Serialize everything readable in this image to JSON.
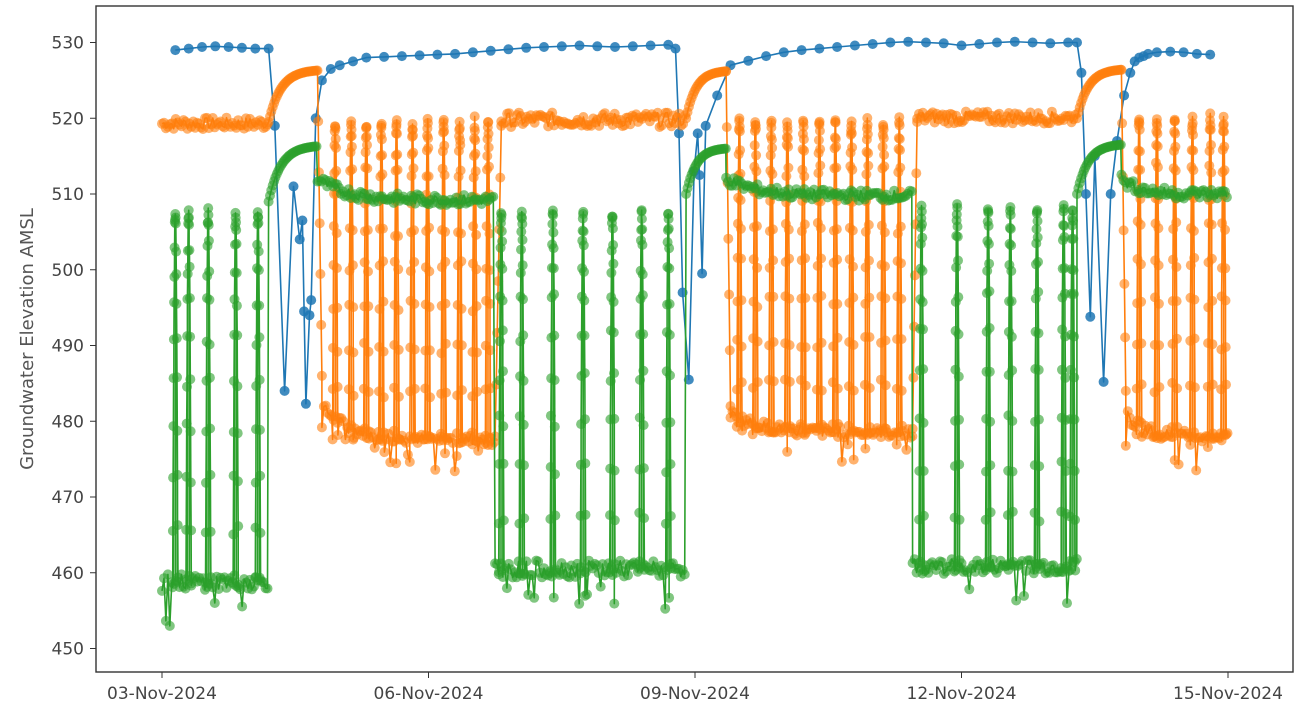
{
  "chart_data": {
    "type": "scatter",
    "mode": "lines+markers",
    "title": "",
    "xlabel": "",
    "ylabel": "Groundwater Elevation AMSL",
    "xlim": [
      0.0,
      12.2
    ],
    "ylim": [
      445,
      535
    ],
    "x_tick_values": [
      0,
      3,
      6,
      9,
      12
    ],
    "x_tick_labels": [
      "03-Nov-2024",
      "06-Nov-2024",
      "09-Nov-2024",
      "12-Nov-2024",
      "15-Nov-2024"
    ],
    "y_tick_values": [
      450,
      460,
      470,
      480,
      490,
      500,
      510,
      520,
      530
    ],
    "y_tick_labels": [
      "450",
      "460",
      "470",
      "480",
      "490",
      "500",
      "510",
      "520",
      "530"
    ],
    "x_unit": "days after 03-Nov-2024",
    "grid": false,
    "legend": "none",
    "series": [
      {
        "color": "#1f77b4",
        "marker_opacity": 0.85,
        "x": [
          0.15,
          0.3,
          0.45,
          0.6,
          0.75,
          0.9,
          1.05,
          1.2,
          1.27,
          1.38,
          1.48,
          1.55,
          1.58,
          1.6,
          1.62,
          1.66,
          1.68,
          1.73,
          1.8,
          1.9,
          2.0,
          2.15,
          2.3,
          2.5,
          2.7,
          2.9,
          3.1,
          3.3,
          3.5,
          3.7,
          3.9,
          4.1,
          4.3,
          4.5,
          4.7,
          4.9,
          5.1,
          5.3,
          5.5,
          5.7,
          5.78,
          5.82,
          5.86,
          5.93,
          5.99,
          6.03,
          6.05,
          6.08,
          6.12,
          6.25,
          6.4,
          6.6,
          6.8,
          7.0,
          7.2,
          7.4,
          7.6,
          7.8,
          8.0,
          8.2,
          8.4,
          8.6,
          8.8,
          9.0,
          9.2,
          9.4,
          9.6,
          9.8,
          10.0,
          10.2,
          10.3,
          10.35,
          10.4,
          10.45,
          10.5,
          10.6,
          10.68,
          10.75,
          10.83,
          10.9,
          10.95,
          11.0,
          11.05,
          11.1,
          11.2,
          11.35,
          11.5,
          11.65,
          11.8
        ],
        "y": [
          529,
          529.2,
          529.4,
          529.5,
          529.4,
          529.3,
          529.2,
          529.2,
          519,
          484,
          511,
          504,
          506.5,
          494.5,
          482.3,
          494,
          496,
          520,
          525,
          526.5,
          527,
          527.5,
          528,
          528.1,
          528.2,
          528.3,
          528.4,
          528.5,
          528.7,
          528.9,
          529.1,
          529.3,
          529.4,
          529.5,
          529.6,
          529.5,
          529.4,
          529.5,
          529.6,
          529.7,
          529.2,
          518,
          497,
          485.5,
          513,
          518,
          512.5,
          499.5,
          519,
          523,
          527,
          527.6,
          528.2,
          528.7,
          529,
          529.2,
          529.4,
          529.6,
          529.8,
          530,
          530.1,
          530,
          529.9,
          529.6,
          529.8,
          530,
          530.1,
          530,
          529.9,
          530,
          530,
          526,
          510,
          493.8,
          515,
          485.2,
          510,
          517,
          523,
          526,
          527.5,
          528,
          528.2,
          528.5,
          528.7,
          528.8,
          528.7,
          528.5,
          528.4
        ]
      },
      {
        "color": "#ff7f0e",
        "marker_opacity": 0.6,
        "cycles": [
          {
            "x0": 0.0,
            "x1": 1.2,
            "kind": "flat",
            "base": 519.3,
            "amp": 1.0
          },
          {
            "x0": 1.2,
            "x1": 1.75,
            "kind": "rise",
            "from": 519.5,
            "to": 526.3
          },
          {
            "x0": 1.75,
            "x1": 1.8,
            "kind": "drop",
            "from": 526.3,
            "to": 486
          },
          {
            "x0": 1.8,
            "x1": 3.75,
            "kind": "decay",
            "from": 482,
            "to": 477.5,
            "spikes": [
              1.95,
              2.13,
              2.3,
              2.47,
              2.64,
              2.82,
              2.99,
              3.17,
              3.35,
              3.52,
              3.67
            ],
            "spike_top": 519.5
          },
          {
            "x0": 3.75,
            "x1": 3.82,
            "kind": "jump",
            "from": 478,
            "to": 519
          },
          {
            "x0": 3.82,
            "x1": 5.9,
            "kind": "flat",
            "base": 519.8,
            "amp": 1.2
          },
          {
            "x0": 5.9,
            "x1": 6.35,
            "kind": "rise",
            "from": 520,
            "to": 526.2
          },
          {
            "x0": 6.35,
            "x1": 6.4,
            "kind": "drop",
            "from": 526.2,
            "to": 482
          },
          {
            "x0": 6.4,
            "x1": 8.45,
            "kind": "decay",
            "from": 481,
            "to": 478.5,
            "spikes": [
              6.5,
              6.68,
              6.86,
              7.04,
              7.22,
              7.4,
              7.58,
              7.76,
              7.94,
              8.12,
              8.3
            ],
            "spike_top": 519.5
          },
          {
            "x0": 8.45,
            "x1": 8.5,
            "kind": "jump",
            "from": 479,
            "to": 519.5
          },
          {
            "x0": 8.5,
            "x1": 10.3,
            "kind": "flat",
            "base": 520.1,
            "amp": 1.0
          },
          {
            "x0": 10.3,
            "x1": 10.8,
            "kind": "rise",
            "from": 520,
            "to": 526.4
          },
          {
            "x0": 10.8,
            "x1": 10.85,
            "kind": "drop",
            "from": 526.4,
            "to": 484
          },
          {
            "x0": 10.85,
            "x1": 12.0,
            "kind": "decay",
            "from": 481,
            "to": 478,
            "spikes": [
              11.0,
              11.2,
              11.4,
              11.6,
              11.8,
              11.95
            ],
            "spike_top": 520
          }
        ]
      },
      {
        "color": "#2ca02c",
        "marker_opacity": 0.6,
        "cycles": [
          {
            "x0": 0.0,
            "x1": 1.2,
            "kind": "low",
            "base": 458.8,
            "amp": 1.3,
            "spikes": [
              0.15,
              0.3,
              0.52,
              0.83,
              1.08
            ],
            "spike_top": 507.5
          },
          {
            "x0": 1.2,
            "x1": 1.75,
            "kind": "rise",
            "from": 509,
            "to": 516.3
          },
          {
            "x0": 1.75,
            "x1": 3.75,
            "kind": "decay",
            "from": 512,
            "to": 509.2
          },
          {
            "x0": 3.75,
            "x1": 5.9,
            "kind": "low",
            "base": 460.5,
            "amp": 1.4,
            "spikes": [
              3.82,
              4.05,
              4.4,
              4.74,
              5.07,
              5.4,
              5.7
            ],
            "spike_top": 507.5
          },
          {
            "x0": 5.9,
            "x1": 6.35,
            "kind": "rise",
            "from": 510,
            "to": 516
          },
          {
            "x0": 6.35,
            "x1": 8.45,
            "kind": "decay",
            "from": 512,
            "to": 509.8
          },
          {
            "x0": 8.45,
            "x1": 10.3,
            "kind": "low",
            "base": 460.8,
            "amp": 1.3,
            "spikes": [
              8.55,
              8.95,
              9.3,
              9.55,
              9.85,
              10.15,
              10.25
            ],
            "spike_top": 508
          },
          {
            "x0": 10.3,
            "x1": 10.8,
            "kind": "rise",
            "from": 510,
            "to": 516.5
          },
          {
            "x0": 10.8,
            "x1": 12.0,
            "kind": "decay",
            "from": 512,
            "to": 510
          }
        ]
      }
    ]
  }
}
